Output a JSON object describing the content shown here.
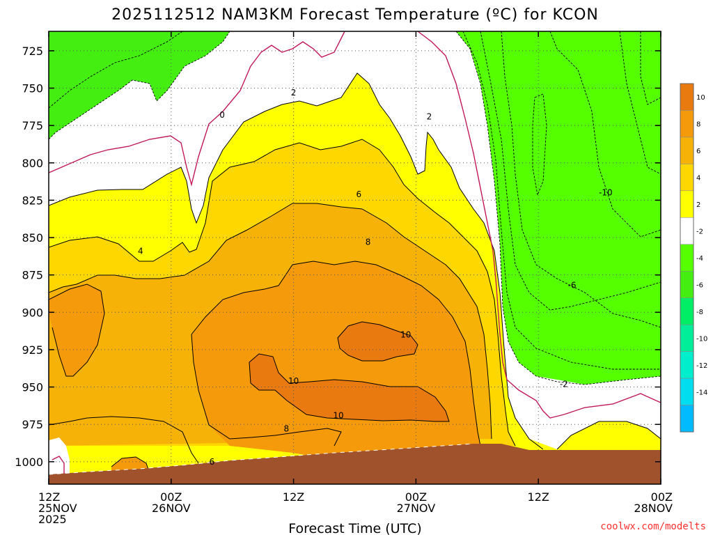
{
  "chart_data": {
    "type": "contour",
    "title": "2025112512 NAM3KM Forecast Temperature (ºC) for KCON",
    "xlabel": "Forecast Time (UTC)",
    "ylabel": "",
    "credit": "coolwx.com/modelts",
    "x_range_hours": [
      0,
      60
    ],
    "y_range_hpa": [
      712,
      1015
    ],
    "y_ticks": [
      {
        "value": 725,
        "label": "725"
      },
      {
        "value": 750,
        "label": "750"
      },
      {
        "value": 775,
        "label": "775"
      },
      {
        "value": 800,
        "label": "800"
      },
      {
        "value": 825,
        "label": "825"
      },
      {
        "value": 850,
        "label": "850"
      },
      {
        "value": 875,
        "label": "875"
      },
      {
        "value": 900,
        "label": "900"
      },
      {
        "value": 925,
        "label": "925"
      },
      {
        "value": 950,
        "label": "950"
      },
      {
        "value": 975,
        "label": "975"
      },
      {
        "value": 1000,
        "label": "1000"
      }
    ],
    "x_ticks": [
      {
        "hour": 0,
        "lines": [
          "12Z",
          "25NOV",
          "2025"
        ]
      },
      {
        "hour": 12,
        "lines": [
          "00Z",
          "26NOV"
        ]
      },
      {
        "hour": 24,
        "lines": [
          "12Z"
        ]
      },
      {
        "hour": 36,
        "lines": [
          "00Z",
          "27NOV"
        ]
      },
      {
        "hour": 48,
        "lines": [
          "12Z"
        ]
      },
      {
        "hour": 60,
        "lines": [
          "00Z",
          "28NOV"
        ]
      }
    ],
    "colorbar": [
      {
        "lo": 10,
        "hi": 12,
        "color": "#e87a10",
        "label": "10"
      },
      {
        "lo": 8,
        "hi": 10,
        "color": "#f59a0a",
        "label": "8"
      },
      {
        "lo": 6,
        "hi": 8,
        "color": "#f7b208",
        "label": "6"
      },
      {
        "lo": 4,
        "hi": 6,
        "color": "#ffd700",
        "label": "4"
      },
      {
        "lo": 2,
        "hi": 4,
        "color": "#ffff00",
        "label": "2"
      },
      {
        "lo": -2,
        "hi": 2,
        "color": "#ffffff",
        "label": "-2"
      },
      {
        "lo": -4,
        "hi": -2,
        "color": "#55ff00",
        "label": "-4"
      },
      {
        "lo": -6,
        "hi": -4,
        "color": "#44ee11",
        "label": "-6"
      },
      {
        "lo": -8,
        "hi": -6,
        "color": "#00ee66",
        "label": "-8"
      },
      {
        "lo": -10,
        "hi": -8,
        "color": "#00ee99",
        "label": "-10"
      },
      {
        "lo": -12,
        "hi": -10,
        "color": "#00eecc",
        "label": "-12"
      },
      {
        "lo": -14,
        "hi": -12,
        "color": "#00ddee",
        "label": "-14"
      },
      {
        "lo": -16,
        "hi": -14,
        "color": "#00bbff",
        "label": ""
      }
    ],
    "contour_labels": [
      {
        "text": "0",
        "hour": 17.0,
        "hpa": 768
      },
      {
        "text": "2",
        "hour": 24.0,
        "hpa": 753
      },
      {
        "text": "2",
        "hour": 37.3,
        "hpa": 769
      },
      {
        "text": "4",
        "hour": 9.0,
        "hpa": 859
      },
      {
        "text": "6",
        "hour": 30.4,
        "hpa": 821
      },
      {
        "text": "8",
        "hour": 31.3,
        "hpa": 853
      },
      {
        "text": "10",
        "hour": 35.0,
        "hpa": 915
      },
      {
        "text": "10",
        "hour": 24.0,
        "hpa": 946
      },
      {
        "text": "10",
        "hour": 28.4,
        "hpa": 969
      },
      {
        "text": "8",
        "hour": 23.3,
        "hpa": 978
      },
      {
        "text": "6",
        "hour": 16.0,
        "hpa": 1000
      },
      {
        "text": "-10",
        "hour": 54.6,
        "hpa": 820
      },
      {
        "text": "-6",
        "hour": 51.3,
        "hpa": 882
      },
      {
        "text": "-2",
        "hour": 50.5,
        "hpa": 948
      }
    ]
  }
}
